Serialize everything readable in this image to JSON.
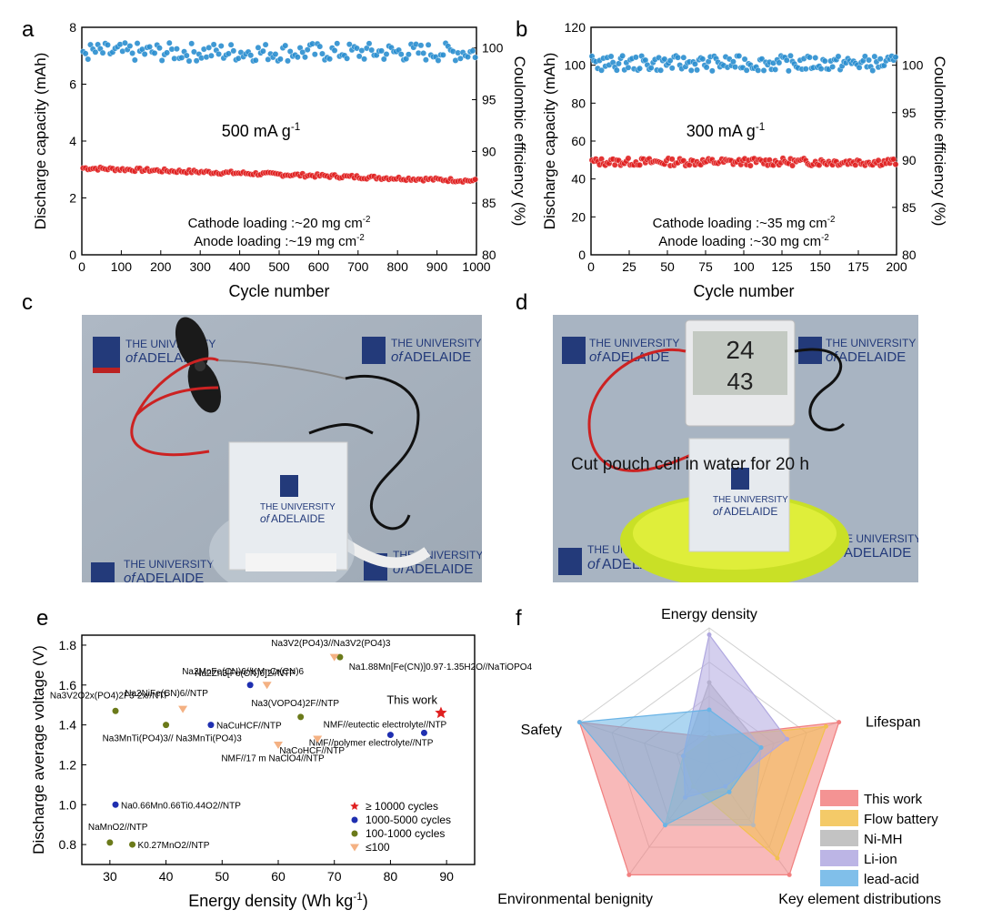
{
  "panel_letters": {
    "a": "a",
    "b": "b",
    "c": "c",
    "d": "d",
    "e": "e",
    "f": "f"
  },
  "chart_data": [
    {
      "id": "a",
      "type": "scatter",
      "title": "",
      "xlabel": "Cycle number",
      "ylabel": "Discharge capacity (mAh)",
      "ylabel_right": "Coulombic efficiency (%)",
      "xlim": [
        0,
        1000
      ],
      "ylim": [
        0,
        8
      ],
      "ylim_right": [
        80,
        102
      ],
      "xticks": [
        0,
        100,
        200,
        300,
        400,
        500,
        600,
        700,
        800,
        900,
        1000
      ],
      "yticks": [
        0,
        2,
        4,
        6,
        8
      ],
      "yticks_right": [
        80,
        85,
        90,
        95,
        100
      ],
      "annotations": {
        "rate": "500 mA g",
        "rate_sup": "-1",
        "cathode": "Cathode loading :~20 mg cm",
        "cathode_sup": "-2",
        "anode": "Anode loading :~19 mg cm",
        "anode_sup": "-2"
      },
      "series": [
        {
          "axis": "left",
          "color": "#e02020",
          "mean": 3.05,
          "end": 2.6,
          "noise": 0.06
        },
        {
          "axis": "right",
          "color": "#2b8fd0",
          "mean": 99.6,
          "end": 99.6,
          "noise": 0.9
        }
      ]
    },
    {
      "id": "b",
      "type": "scatter",
      "title": "",
      "xlabel": "Cycle number",
      "ylabel": "Discharge capacity (mAh)",
      "ylabel_right": "Coulombic efficiency (%)",
      "xlim": [
        0,
        200
      ],
      "ylim": [
        0,
        120
      ],
      "ylim_right": [
        80,
        104
      ],
      "xticks": [
        0,
        25,
        50,
        75,
        100,
        125,
        150,
        175,
        200
      ],
      "yticks": [
        0,
        20,
        40,
        60,
        80,
        100,
        120
      ],
      "yticks_right": [
        80,
        85,
        90,
        95,
        100
      ],
      "annotations": {
        "rate": "300 mA g",
        "rate_sup": "-1",
        "cathode": "Cathode loading :~35 mg cm",
        "cathode_sup": "-2",
        "anode": "Anode loading :~30 mg cm",
        "anode_sup": "-2"
      },
      "series": [
        {
          "axis": "left",
          "color": "#e02020",
          "mean": 49,
          "end": 49,
          "noise": 2.0
        },
        {
          "axis": "right",
          "color": "#2b8fd0",
          "mean": 100.2,
          "end": 100.2,
          "noise": 0.8
        }
      ]
    },
    {
      "id": "e",
      "type": "scatter",
      "title": "",
      "xlabel": "Energy density (Wh kg",
      "xlabel_sup": "-1",
      "xlabel_end": ")",
      "ylabel": "Discharge average voltage (V)",
      "xlim": [
        25,
        95
      ],
      "ylim": [
        0.7,
        1.85
      ],
      "xticks": [
        30,
        40,
        50,
        60,
        70,
        80,
        90
      ],
      "yticks": [
        0.8,
        1.0,
        1.2,
        1.4,
        1.6,
        1.8
      ],
      "legend": [
        {
          "label": "≥ 10000 cycles",
          "color": "#e02020",
          "marker": "star"
        },
        {
          "label": "1000-5000 cycles",
          "color": "#1f2fb0",
          "marker": "circle"
        },
        {
          "label": "100-1000 cycles",
          "color": "#6b7a1a",
          "marker": "circle"
        },
        {
          "label": "≤100",
          "color": "#f4b183",
          "marker": "tri"
        }
      ],
      "points": [
        {
          "x": 89,
          "y": 1.46,
          "cat": 0,
          "label": "This work"
        },
        {
          "x": 55,
          "y": 1.6,
          "cat": 1,
          "label": "Na2MnFe(CN)6//KMnCr(CN)6"
        },
        {
          "x": 48,
          "y": 1.4,
          "cat": 1,
          "label": "NaCuHCF//NTP"
        },
        {
          "x": 80,
          "y": 1.35,
          "cat": 1,
          "label": "NMF//eutectic electrolyte//NTP"
        },
        {
          "x": 86,
          "y": 1.36,
          "cat": 1,
          "label": "NMF//polymer electrolyte//NTP"
        },
        {
          "x": 31,
          "y": 1.0,
          "cat": 1,
          "label": "Na0.66Mn0.66Ti0.44O2//NTP"
        },
        {
          "x": 71,
          "y": 1.74,
          "cat": 2,
          "label": "Na3V2(PO4)3//Na3V2(PO4)3"
        },
        {
          "x": 31,
          "y": 1.47,
          "cat": 2,
          "label": "Na3V2O2x(PO4)2F3-2x//NTP"
        },
        {
          "x": 40,
          "y": 1.4,
          "cat": 2,
          "label": "Na3MnTi(PO4)3// Na3MnTi(PO4)3"
        },
        {
          "x": 64,
          "y": 1.44,
          "cat": 2,
          "label": "Na3(VOPO4)2F//NTP"
        },
        {
          "x": 30,
          "y": 0.81,
          "cat": 2,
          "label": "NaMnO2//NTP"
        },
        {
          "x": 34,
          "y": 0.8,
          "cat": 2,
          "label": "K0.27MnO2//NTP"
        },
        {
          "x": 70,
          "y": 1.74,
          "cat": 3,
          "label": "Na1.88Mn[Fe(CN)]0.97·1.35H2O//NaTiOPO4"
        },
        {
          "x": 58,
          "y": 1.6,
          "cat": 3,
          "label": "Na2Zn3[Fe(CN)6]2//NTP"
        },
        {
          "x": 43,
          "y": 1.48,
          "cat": 3,
          "label": "Na2NiFe(CN)6//NTP"
        },
        {
          "x": 67,
          "y": 1.33,
          "cat": 3,
          "label": "NaCoHCF//NTP"
        },
        {
          "x": 60,
          "y": 1.3,
          "cat": 3,
          "label": "NMF//17 m NaClO4//NTP"
        }
      ]
    },
    {
      "id": "f",
      "type": "radar",
      "title": "",
      "axes": [
        "Energy density",
        "Lifespan",
        "Key element distributions",
        "Environmental benignity",
        "Safety"
      ],
      "series": [
        {
          "name": "This work",
          "color": "#f28080",
          "values": [
            0.2,
            1.0,
            1.0,
            1.0,
            1.0
          ]
        },
        {
          "name": "Flow battery",
          "color": "#f2c14e",
          "values": [
            0.2,
            0.9,
            0.85,
            0.2,
            0.2
          ]
        },
        {
          "name": "Ni-MH",
          "color": "#b8b8b8",
          "values": [
            0.6,
            0.4,
            0.55,
            0.55,
            0.2
          ]
        },
        {
          "name": "Li-ion",
          "color": "#b0a8e0",
          "values": [
            0.95,
            0.6,
            0.2,
            0.3,
            0.2
          ]
        },
        {
          "name": "lead-acid",
          "color": "#6ab4e6",
          "values": [
            0.4,
            0.4,
            0.25,
            0.55,
            1.0
          ]
        }
      ]
    }
  ],
  "photo_c": {
    "logo_line1": "THE UNIVERSITY",
    "logo_of": "of",
    "logo_line2": "ADELAIDE"
  },
  "photo_d": {
    "caption": "Cut pouch cell in water for 20 h",
    "display_top": "24",
    "display_bottom": "43"
  }
}
